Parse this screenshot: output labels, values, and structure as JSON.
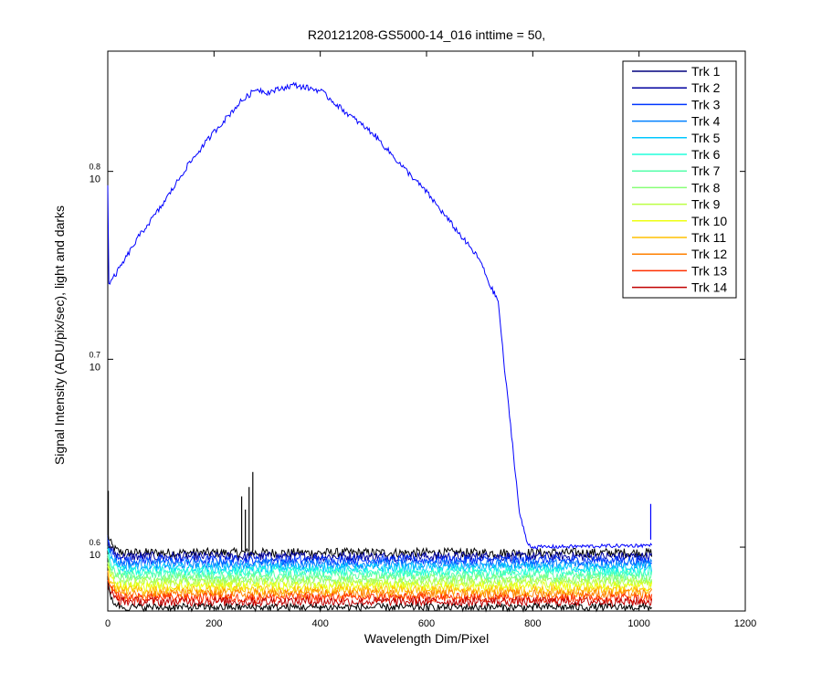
{
  "chart_data": {
    "type": "line",
    "title": "R20121208-GS5000-14_016 inttime = 50,",
    "xlabel": "Wavelength Dim/Pixel",
    "ylabel": "Signal Intensity (ADU/pix/sec), light and darks",
    "xlim": [
      0,
      1200
    ],
    "ylog": true,
    "ylim_exponent": [
      0.566,
      0.864
    ],
    "x_ticks": [
      "0",
      "200",
      "400",
      "600",
      "800",
      "1000",
      "1200"
    ],
    "y_ticks": [
      {
        "base": "10",
        "exp": "0.6",
        "value_exponent": 0.6
      },
      {
        "base": "10",
        "exp": "0.7",
        "value_exponent": 0.7
      },
      {
        "base": "10",
        "exp": "0.8",
        "value_exponent": 0.8
      }
    ],
    "legend_position": "top-right",
    "series": [
      {
        "name": "Trk 1",
        "color": "#00007f"
      },
      {
        "name": "Trk 2",
        "color": "#00009f"
      },
      {
        "name": "Trk 3",
        "color": "#0035ff"
      },
      {
        "name": "Trk 4",
        "color": "#0080ff"
      },
      {
        "name": "Trk 5",
        "color": "#00c8ff"
      },
      {
        "name": "Trk 6",
        "color": "#22ffdc"
      },
      {
        "name": "Trk 7",
        "color": "#55ffaa"
      },
      {
        "name": "Trk 8",
        "color": "#88ff77"
      },
      {
        "name": "Trk 9",
        "color": "#bbff44"
      },
      {
        "name": "Trk 10",
        "color": "#eeff11"
      },
      {
        "name": "Trk 11",
        "color": "#ffc000"
      },
      {
        "name": "Trk 12",
        "color": "#ff8000"
      },
      {
        "name": "Trk 13",
        "color": "#ff3000"
      },
      {
        "name": "Trk 14",
        "color": "#c00000"
      }
    ],
    "light_curve": {
      "series": "Trk 1",
      "color": "#0000ff",
      "x": [
        0,
        2,
        10,
        30,
        60,
        100,
        150,
        200,
        250,
        280,
        300,
        350,
        400,
        450,
        500,
        550,
        600,
        650,
        700,
        720,
        735,
        745,
        760,
        775,
        790,
        800,
        1024
      ],
      "y_exponent": [
        0.793,
        0.74,
        0.743,
        0.752,
        0.766,
        0.781,
        0.803,
        0.821,
        0.837,
        0.844,
        0.842,
        0.846,
        0.843,
        0.831,
        0.82,
        0.804,
        0.789,
        0.771,
        0.753,
        0.739,
        0.731,
        0.7,
        0.66,
        0.618,
        0.602,
        0.6,
        0.601
      ]
    },
    "dark_bands_y_exponent": [
      0.597,
      0.595,
      0.593,
      0.591,
      0.589,
      0.587,
      0.585,
      0.583,
      0.581,
      0.579,
      0.577,
      0.575,
      0.573,
      0.571
    ],
    "dark_band_spike": {
      "x": [
        250,
        275
      ],
      "y_exponent_max": 0.64
    },
    "dark_x_range": [
      0,
      1024
    ]
  }
}
